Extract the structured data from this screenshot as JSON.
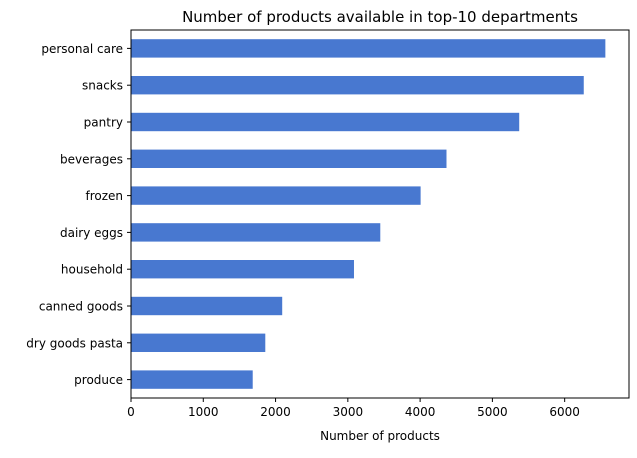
{
  "chart_data": {
    "type": "bar",
    "orientation": "horizontal",
    "title": "Number of products available in top-10 departments",
    "xlabel": "Number of products",
    "ylabel": "",
    "categories": [
      "personal care",
      "snacks",
      "pantry",
      "beverages",
      "frozen",
      "dairy eggs",
      "household",
      "canned goods",
      "dry goods pasta",
      "produce"
    ],
    "values": [
      6563,
      6264,
      5371,
      4365,
      4007,
      3449,
      3085,
      2092,
      1858,
      1684
    ],
    "xlim": [
      0,
      6890
    ],
    "xticks": [
      0,
      1000,
      2000,
      3000,
      4000,
      5000,
      6000
    ],
    "grid": false,
    "legend": "none",
    "bar_color": "#4878d0"
  }
}
